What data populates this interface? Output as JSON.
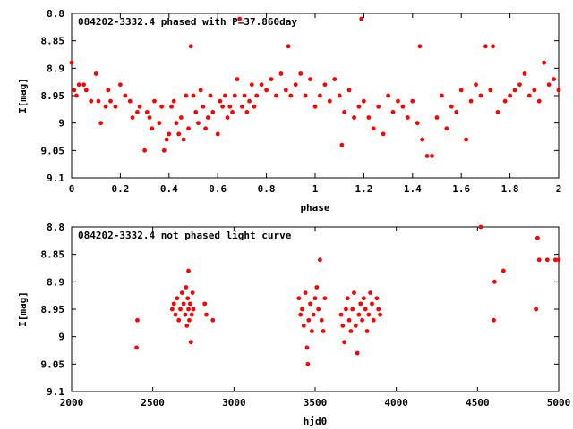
{
  "chart_data": [
    {
      "type": "scatter",
      "title": "084202-3332.4 phased with P=37.860day",
      "xlabel": "phase",
      "ylabel": "I[mag]",
      "xlim": [
        0,
        2
      ],
      "ylim": [
        9.1,
        8.8
      ],
      "y_inverted": true,
      "xticks": [
        "0",
        "0.2",
        "0.4",
        "0.6",
        "0.8",
        "1",
        "1.2",
        "1.4",
        "1.6",
        "1.8",
        "2"
      ],
      "yticks": [
        "8.8",
        "8.85",
        "8.9",
        "8.95",
        "9",
        "9.05",
        "9.1"
      ],
      "marker_color": "#ff0000",
      "points": [
        [
          0.0,
          8.89
        ],
        [
          0.01,
          8.94
        ],
        [
          0.02,
          8.95
        ],
        [
          0.03,
          8.93
        ],
        [
          0.05,
          8.93
        ],
        [
          0.06,
          8.94
        ],
        [
          0.08,
          8.96
        ],
        [
          0.1,
          8.91
        ],
        [
          0.11,
          8.96
        ],
        [
          0.12,
          9.0
        ],
        [
          0.14,
          8.97
        ],
        [
          0.15,
          8.94
        ],
        [
          0.16,
          8.96
        ],
        [
          0.18,
          8.97
        ],
        [
          0.2,
          8.93
        ],
        [
          0.22,
          8.95
        ],
        [
          0.24,
          8.96
        ],
        [
          0.25,
          8.99
        ],
        [
          0.27,
          8.98
        ],
        [
          0.28,
          8.97
        ],
        [
          0.3,
          9.05
        ],
        [
          0.31,
          8.98
        ],
        [
          0.32,
          8.99
        ],
        [
          0.33,
          9.01
        ],
        [
          0.34,
          8.96
        ],
        [
          0.36,
          9.0
        ],
        [
          0.37,
          8.97
        ],
        [
          0.38,
          9.05
        ],
        [
          0.39,
          9.03
        ],
        [
          0.4,
          9.02
        ],
        [
          0.41,
          8.97
        ],
        [
          0.42,
          8.96
        ],
        [
          0.43,
          9.0
        ],
        [
          0.44,
          9.02
        ],
        [
          0.45,
          8.99
        ],
        [
          0.46,
          9.03
        ],
        [
          0.47,
          8.95
        ],
        [
          0.48,
          9.01
        ],
        [
          0.49,
          8.86
        ],
        [
          0.5,
          8.95
        ],
        [
          0.51,
          8.98
        ],
        [
          0.52,
          9.0
        ],
        [
          0.53,
          8.94
        ],
        [
          0.54,
          8.97
        ],
        [
          0.55,
          9.01
        ],
        [
          0.56,
          8.99
        ],
        [
          0.57,
          8.95
        ],
        [
          0.58,
          8.98
        ],
        [
          0.6,
          9.02
        ],
        [
          0.61,
          8.96
        ],
        [
          0.62,
          8.97
        ],
        [
          0.63,
          8.95
        ],
        [
          0.64,
          8.99
        ],
        [
          0.65,
          8.97
        ],
        [
          0.66,
          8.98
        ],
        [
          0.67,
          8.95
        ],
        [
          0.68,
          8.92
        ],
        [
          0.69,
          8.81
        ],
        [
          0.7,
          8.97
        ],
        [
          0.71,
          8.95
        ],
        [
          0.72,
          8.98
        ],
        [
          0.73,
          8.96
        ],
        [
          0.74,
          8.93
        ],
        [
          0.75,
          8.97
        ],
        [
          0.76,
          8.95
        ],
        [
          0.78,
          8.93
        ],
        [
          0.8,
          8.94
        ],
        [
          0.82,
          8.92
        ],
        [
          0.84,
          8.95
        ],
        [
          0.86,
          8.91
        ],
        [
          0.88,
          8.94
        ],
        [
          0.89,
          8.86
        ],
        [
          0.9,
          8.95
        ],
        [
          0.92,
          8.93
        ],
        [
          0.94,
          8.91
        ],
        [
          0.96,
          8.95
        ],
        [
          0.98,
          8.92
        ],
        [
          1.0,
          8.97
        ],
        [
          1.02,
          8.95
        ],
        [
          1.04,
          8.93
        ],
        [
          1.06,
          8.96
        ],
        [
          1.08,
          8.92
        ],
        [
          1.1,
          8.95
        ],
        [
          1.11,
          9.04
        ],
        [
          1.12,
          8.98
        ],
        [
          1.14,
          8.94
        ],
        [
          1.16,
          8.99
        ],
        [
          1.18,
          8.97
        ],
        [
          1.19,
          8.81
        ],
        [
          1.2,
          8.96
        ],
        [
          1.22,
          8.99
        ],
        [
          1.24,
          9.01
        ],
        [
          1.26,
          8.97
        ],
        [
          1.28,
          9.02
        ],
        [
          1.3,
          8.95
        ],
        [
          1.32,
          8.98
        ],
        [
          1.34,
          8.96
        ],
        [
          1.36,
          8.97
        ],
        [
          1.38,
          8.99
        ],
        [
          1.4,
          8.96
        ],
        [
          1.42,
          9.0
        ],
        [
          1.43,
          8.86
        ],
        [
          1.44,
          9.03
        ],
        [
          1.46,
          9.06
        ],
        [
          1.48,
          9.06
        ],
        [
          1.5,
          8.99
        ],
        [
          1.52,
          8.95
        ],
        [
          1.54,
          9.01
        ],
        [
          1.56,
          8.97
        ],
        [
          1.58,
          8.98
        ],
        [
          1.6,
          8.94
        ],
        [
          1.62,
          9.03
        ],
        [
          1.64,
          8.96
        ],
        [
          1.66,
          8.93
        ],
        [
          1.68,
          8.95
        ],
        [
          1.7,
          8.86
        ],
        [
          1.72,
          8.94
        ],
        [
          1.73,
          8.86
        ],
        [
          1.75,
          8.98
        ],
        [
          1.78,
          8.96
        ],
        [
          1.8,
          8.95
        ],
        [
          1.82,
          8.94
        ],
        [
          1.84,
          8.93
        ],
        [
          1.86,
          8.91
        ],
        [
          1.88,
          8.95
        ],
        [
          1.9,
          8.94
        ],
        [
          1.92,
          8.96
        ],
        [
          1.94,
          8.89
        ],
        [
          1.96,
          8.93
        ],
        [
          1.98,
          8.92
        ],
        [
          2.0,
          8.94
        ]
      ]
    },
    {
      "type": "scatter",
      "title": "084202-3332.4 not phased light curve",
      "xlabel": "hjd0",
      "ylabel": "I[mag]",
      "xlim": [
        2000,
        5000
      ],
      "ylim": [
        9.1,
        8.8
      ],
      "y_inverted": true,
      "xticks": [
        "2000",
        "2500",
        "3000",
        "3500",
        "4000",
        "4500",
        "5000"
      ],
      "yticks": [
        "8.8",
        "8.85",
        "8.9",
        "8.95",
        "9",
        "9.05",
        "9.1"
      ],
      "marker_color": "#ff0000",
      "points": [
        [
          2400,
          9.02
        ],
        [
          2405,
          8.97
        ],
        [
          2620,
          8.95
        ],
        [
          2630,
          8.94
        ],
        [
          2640,
          8.96
        ],
        [
          2650,
          8.93
        ],
        [
          2660,
          8.97
        ],
        [
          2670,
          8.95
        ],
        [
          2680,
          8.92
        ],
        [
          2690,
          8.94
        ],
        [
          2700,
          8.96
        ],
        [
          2705,
          8.91
        ],
        [
          2710,
          8.98
        ],
        [
          2715,
          8.93
        ],
        [
          2720,
          8.95
        ],
        [
          2725,
          8.97
        ],
        [
          2730,
          8.94
        ],
        [
          2735,
          9.01
        ],
        [
          2740,
          8.96
        ],
        [
          2745,
          8.92
        ],
        [
          2750,
          8.95
        ],
        [
          2720,
          8.88
        ],
        [
          2820,
          8.94
        ],
        [
          2830,
          8.96
        ],
        [
          2870,
          8.97
        ],
        [
          3400,
          8.93
        ],
        [
          3410,
          8.96
        ],
        [
          3420,
          8.95
        ],
        [
          3430,
          8.98
        ],
        [
          3440,
          8.92
        ],
        [
          3450,
          9.02
        ],
        [
          3455,
          9.05
        ],
        [
          3460,
          8.97
        ],
        [
          3470,
          8.94
        ],
        [
          3480,
          8.99
        ],
        [
          3490,
          8.96
        ],
        [
          3500,
          8.93
        ],
        [
          3510,
          8.91
        ],
        [
          3520,
          8.95
        ],
        [
          3530,
          8.86
        ],
        [
          3540,
          8.97
        ],
        [
          3550,
          8.99
        ],
        [
          3560,
          8.93
        ],
        [
          3660,
          8.96
        ],
        [
          3670,
          8.98
        ],
        [
          3680,
          9.01
        ],
        [
          3690,
          8.95
        ],
        [
          3700,
          8.93
        ],
        [
          3710,
          8.97
        ],
        [
          3720,
          8.99
        ],
        [
          3730,
          8.95
        ],
        [
          3740,
          8.92
        ],
        [
          3750,
          8.98
        ],
        [
          3760,
          9.03
        ],
        [
          3770,
          8.96
        ],
        [
          3780,
          8.94
        ],
        [
          3790,
          8.97
        ],
        [
          3800,
          8.93
        ],
        [
          3810,
          8.95
        ],
        [
          3820,
          8.99
        ],
        [
          3830,
          8.96
        ],
        [
          3840,
          8.92
        ],
        [
          3850,
          8.94
        ],
        [
          3860,
          8.97
        ],
        [
          3880,
          8.93
        ],
        [
          3890,
          8.95
        ],
        [
          3900,
          8.96
        ],
        [
          4520,
          8.8
        ],
        [
          4600,
          8.97
        ],
        [
          4605,
          8.9
        ],
        [
          4660,
          8.88
        ],
        [
          4860,
          8.95
        ],
        [
          4870,
          8.82
        ],
        [
          4880,
          8.86
        ],
        [
          4930,
          8.86
        ],
        [
          4980,
          8.86
        ],
        [
          5000,
          8.86
        ]
      ]
    }
  ]
}
